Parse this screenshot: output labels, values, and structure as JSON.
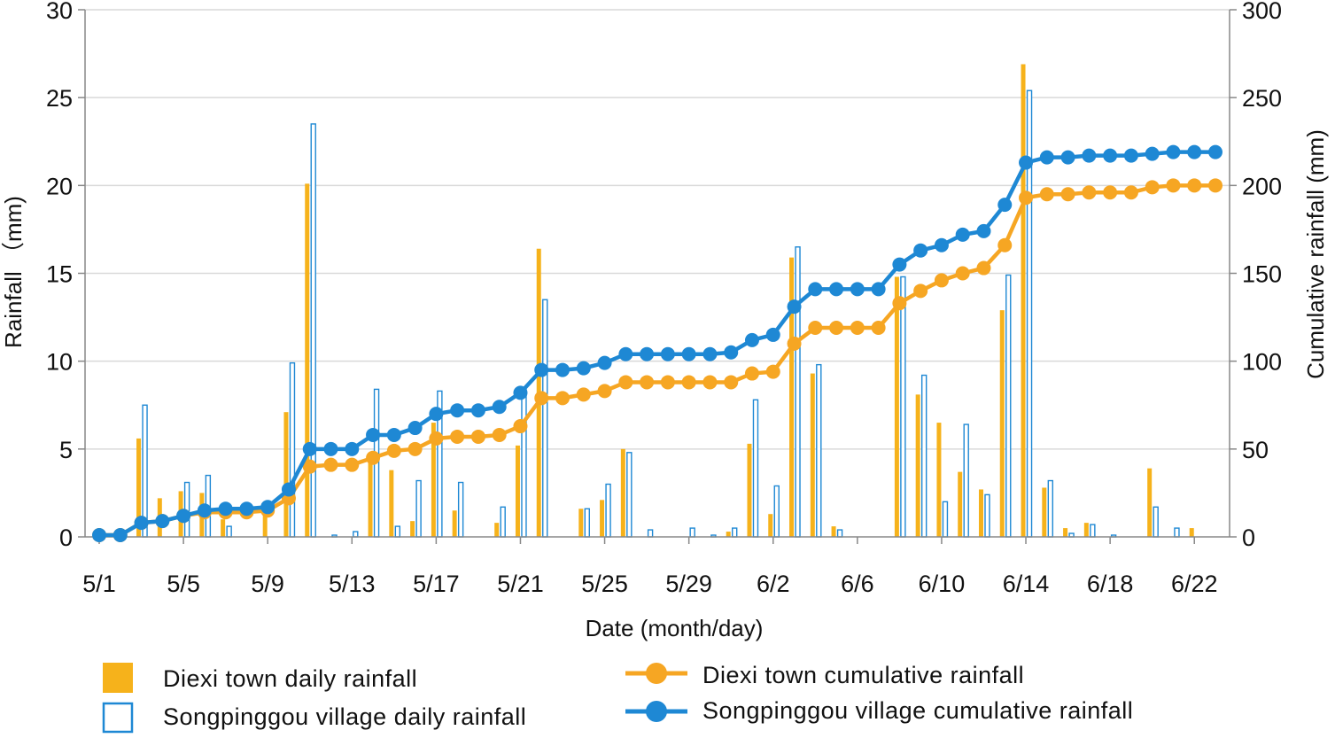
{
  "chart_data": {
    "type": "bar",
    "categories": [
      "5/1",
      "5/2",
      "5/3",
      "5/4",
      "5/5",
      "5/6",
      "5/7",
      "5/8",
      "5/9",
      "5/10",
      "5/11",
      "5/12",
      "5/13",
      "5/14",
      "5/15",
      "5/16",
      "5/17",
      "5/18",
      "5/19",
      "5/20",
      "5/21",
      "5/22",
      "5/23",
      "5/24",
      "5/25",
      "5/26",
      "5/27",
      "5/28",
      "5/29",
      "5/30",
      "5/31",
      "6/1",
      "6/2",
      "6/3",
      "6/4",
      "6/5",
      "6/6",
      "6/7",
      "6/8",
      "6/9",
      "6/10",
      "6/11",
      "6/12",
      "6/13",
      "6/14",
      "6/15",
      "6/16",
      "6/17",
      "6/18",
      "6/19",
      "6/20",
      "6/21",
      "6/22",
      "6/23"
    ],
    "x_tick_labels": [
      "5/1",
      "5/5",
      "5/9",
      "5/13",
      "5/17",
      "5/21",
      "5/25",
      "5/29",
      "6/2",
      "6/6",
      "6/10",
      "6/14",
      "6/18",
      "6/22"
    ],
    "xlabel": "Date (month/day)",
    "ylabel": "Rainfall （mm)",
    "y2label": "Cumulative rainfall (mm)",
    "ylim": [
      0,
      30
    ],
    "y2lim": [
      0,
      300
    ],
    "y_ticks": [
      0,
      5,
      10,
      15,
      20,
      25,
      30
    ],
    "y2_ticks": [
      0,
      50,
      100,
      150,
      200,
      250,
      300
    ],
    "grid": "horizontal",
    "legend_position": "bottom",
    "series": [
      {
        "name": "Diexi town daily rainfall",
        "kind": "bar",
        "axis": "left",
        "color": "#F6B21B",
        "values": [
          0,
          0,
          5.6,
          2.2,
          2.6,
          2.5,
          1.0,
          0,
          1.2,
          7.1,
          20.1,
          0,
          0,
          4.8,
          3.8,
          0.9,
          6.5,
          1.5,
          0,
          0.8,
          5.2,
          16.4,
          0,
          1.6,
          2.1,
          5.0,
          0,
          0,
          0,
          0,
          0.3,
          5.3,
          1.3,
          15.9,
          9.3,
          0.6,
          0,
          0,
          14.8,
          8.1,
          6.5,
          3.7,
          2.7,
          12.9,
          26.9,
          2.8,
          0.5,
          0.8,
          0,
          0,
          3.9,
          0,
          0.5,
          0
        ]
      },
      {
        "name": "Songpinggou village daily rainfall",
        "kind": "bar-outline",
        "axis": "left",
        "color": "#1E88D4",
        "values": [
          0,
          0,
          7.5,
          0,
          3.1,
          3.5,
          0.6,
          0,
          0,
          9.9,
          23.5,
          0.1,
          0.3,
          8.4,
          0.6,
          3.2,
          8.3,
          3.1,
          0,
          1.7,
          8.4,
          13.5,
          0,
          1.6,
          3.0,
          4.8,
          0.4,
          0,
          0.5,
          0.1,
          0.5,
          7.8,
          2.9,
          16.5,
          9.8,
          0.4,
          0,
          0,
          14.8,
          9.2,
          2.0,
          6.4,
          2.4,
          14.9,
          25.4,
          3.2,
          0.2,
          0.7,
          0.1,
          0,
          1.7,
          0.5,
          0,
          0
        ]
      },
      {
        "name": "Diexi town cumulative rainfall",
        "kind": "line",
        "axis": "right",
        "color": "#F6A623",
        "values": [
          1,
          1,
          8,
          9,
          12,
          14,
          14,
          14,
          15,
          22,
          40,
          41,
          41,
          45,
          49,
          50,
          56,
          57,
          57,
          58,
          63,
          79,
          79,
          81,
          83,
          88,
          88,
          88,
          88,
          88,
          88,
          93,
          94,
          110,
          119,
          119,
          119,
          119,
          133,
          140,
          146,
          150,
          153,
          166,
          193,
          195,
          195,
          196,
          196,
          196,
          199,
          200,
          200,
          200
        ]
      },
      {
        "name": "Songpinggou village cumulative rainfall",
        "kind": "line",
        "axis": "right",
        "color": "#1E88D4",
        "values": [
          1,
          1,
          8,
          9,
          12,
          15,
          16,
          16,
          17,
          27,
          50,
          50,
          50,
          58,
          58,
          62,
          70,
          72,
          72,
          74,
          82,
          95,
          95,
          96,
          99,
          104,
          104,
          104,
          104,
          104,
          105,
          112,
          115,
          131,
          141,
          141,
          141,
          141,
          155,
          163,
          166,
          172,
          174,
          189,
          213,
          216,
          216,
          217,
          217,
          217,
          218,
          219,
          219,
          219
        ]
      }
    ]
  }
}
